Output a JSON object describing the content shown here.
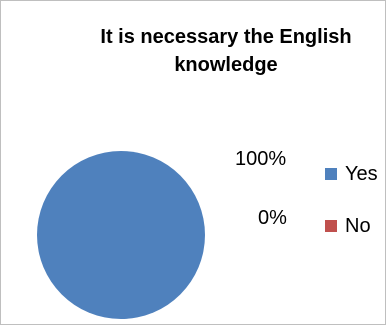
{
  "chart_data": {
    "type": "pie",
    "title": "It is necessary the English knowledge",
    "categories": [
      "Yes",
      "No"
    ],
    "values": [
      100,
      0
    ],
    "data_labels": [
      "100%",
      "0%"
    ],
    "colors": [
      "#4f81bd",
      "#c0504d"
    ],
    "legend_position": "right"
  }
}
